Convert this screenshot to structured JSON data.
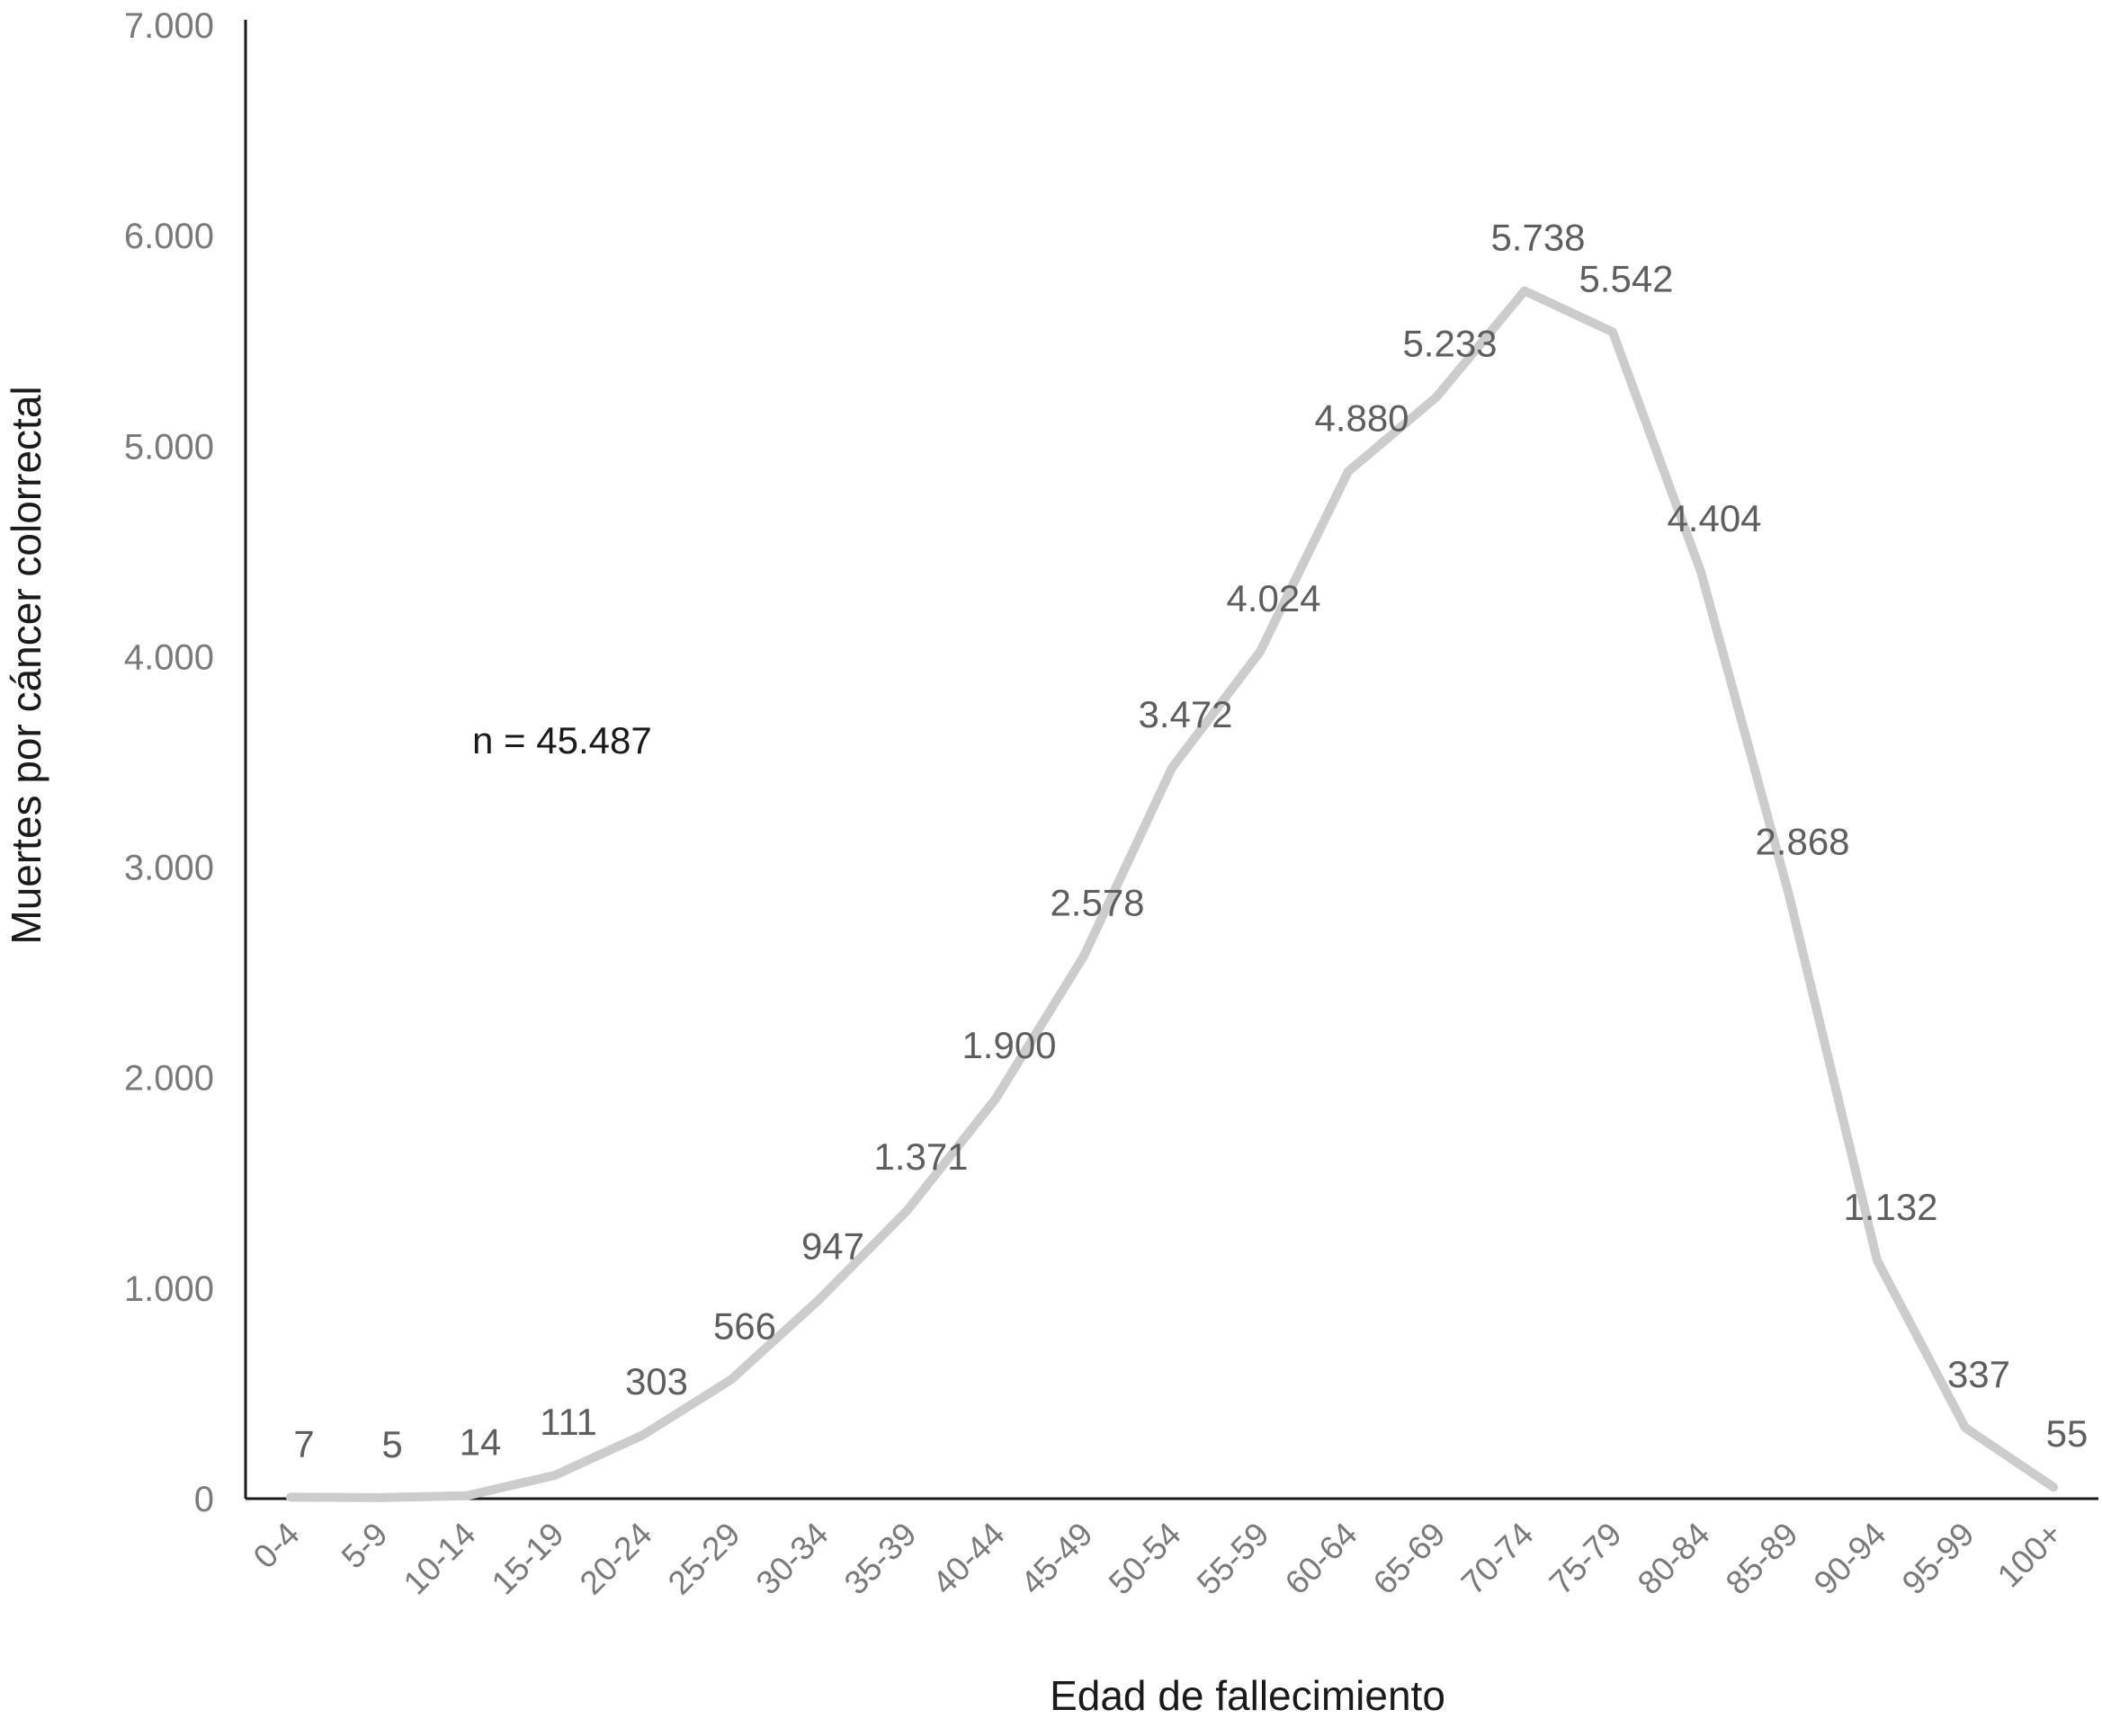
{
  "chart_data": {
    "type": "line",
    "title": "",
    "xlabel": "Edad de fallecimiento",
    "ylabel": "Muertes por cáncer colorrectal",
    "annotation": "n = 45.487",
    "ylim": [
      0,
      7000
    ],
    "yticks": [
      0,
      1000,
      2000,
      3000,
      4000,
      5000,
      6000,
      7000
    ],
    "ytick_labels": [
      "0",
      "1.000",
      "2.000",
      "3.000",
      "4.000",
      "5.000",
      "6.000",
      "7.000"
    ],
    "categories": [
      "0-4",
      "5-9",
      "10-14",
      "15-19",
      "20-24",
      "25-29",
      "30-34",
      "35-39",
      "40-44",
      "45-49",
      "50-54",
      "55-59",
      "60-64",
      "65-69",
      "70-74",
      "75-79",
      "80-84",
      "85-89",
      "90-94",
      "95-99",
      "100+"
    ],
    "values": [
      7,
      5,
      14,
      111,
      303,
      566,
      947,
      1371,
      1900,
      2578,
      3472,
      4024,
      4880,
      5233,
      5738,
      5542,
      4404,
      2868,
      1132,
      337,
      55
    ],
    "value_labels": [
      "7",
      "5",
      "14",
      "111",
      "303",
      "566",
      "947",
      "1.371",
      "1.900",
      "2.578",
      "3.472",
      "4.024",
      "4.880",
      "5.233",
      "5.738",
      "5.542",
      "4.404",
      "2.868",
      "1.132",
      "337",
      "55"
    ],
    "grid": false,
    "legend": "none",
    "line_color": "#cccccc",
    "axis_color": "#1a1a1a"
  }
}
